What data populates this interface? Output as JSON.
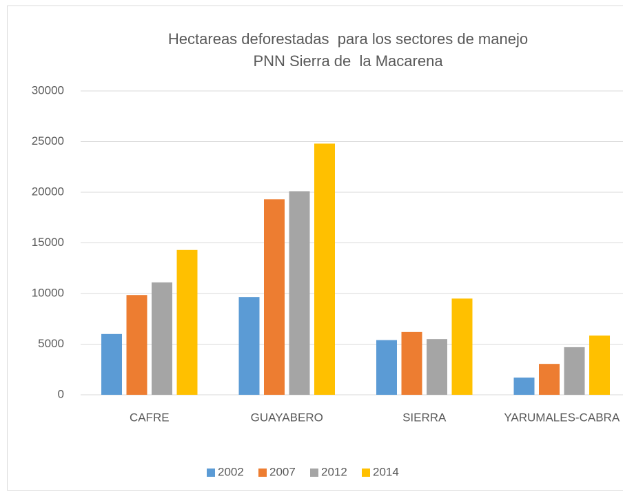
{
  "chart_data": {
    "type": "bar",
    "title": [
      "Hectareas deforestadas  para los sectores de manejo",
      "PNN Sierra de  la Macarena"
    ],
    "categories": [
      "CAFRE",
      "GUAYABERO",
      "SIERRA",
      "YARUMALES-CABRA"
    ],
    "series": [
      {
        "name": "2002",
        "color": "#5b9bd5",
        "values": [
          6000,
          9650,
          5400,
          1700
        ]
      },
      {
        "name": "2007",
        "color": "#ed7d31",
        "values": [
          9850,
          19300,
          6200,
          3050
        ]
      },
      {
        "name": "2012",
        "color": "#a5a5a5",
        "values": [
          11100,
          20100,
          5500,
          4700
        ]
      },
      {
        "name": "2014",
        "color": "#ffc000",
        "values": [
          14300,
          24800,
          9500,
          5850
        ]
      }
    ],
    "ylim": [
      0,
      30000
    ],
    "yticks": [
      0,
      5000,
      10000,
      15000,
      20000,
      25000,
      30000
    ],
    "grid": true,
    "legend": "bottom"
  }
}
